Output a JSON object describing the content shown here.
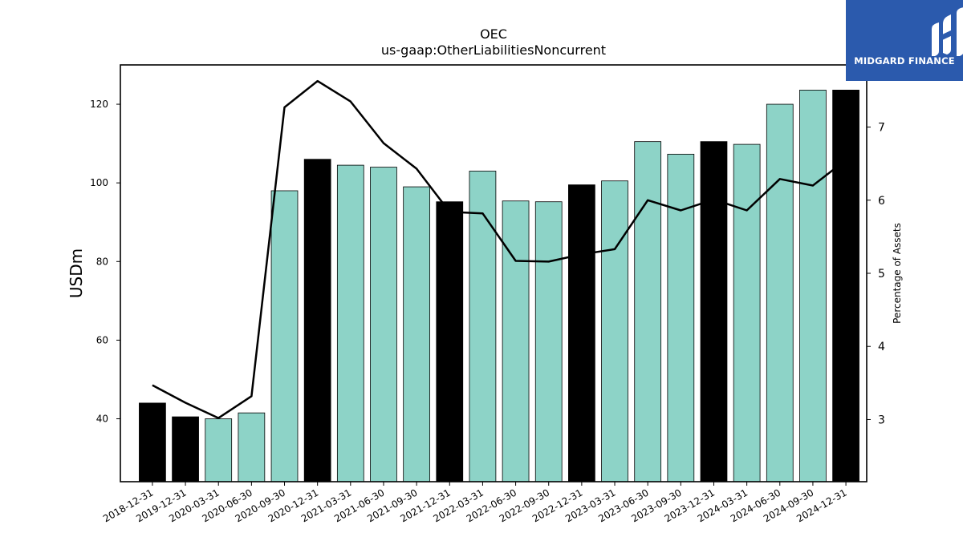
{
  "chart_data": {
    "type": "bar",
    "title": "OEC",
    "subtitle": "us-gaap:OtherLiabilitiesNoncurrent",
    "ylabel": "USDm",
    "y2label": "Percentage of Assets",
    "ylim": [
      24,
      130
    ],
    "y2lim": [
      2.15,
      7.85
    ],
    "yticks": [
      40,
      60,
      80,
      100,
      120
    ],
    "y2ticks": [
      3,
      4,
      5,
      6,
      7
    ],
    "categories": [
      "2018-12-31",
      "2019-12-31",
      "2020-03-31",
      "2020-06-30",
      "2020-09-30",
      "2020-12-31",
      "2021-03-31",
      "2021-06-30",
      "2021-09-30",
      "2021-12-31",
      "2022-03-31",
      "2022-06-30",
      "2022-09-30",
      "2022-12-31",
      "2023-03-31",
      "2023-06-30",
      "2023-09-30",
      "2023-12-31",
      "2024-03-31",
      "2024-06-30",
      "2024-09-30",
      "2024-12-31"
    ],
    "series": [
      {
        "values": [
          44.0,
          40.5,
          40.0,
          41.5,
          98.0,
          106.0,
          104.5,
          104.0,
          99.0,
          95.2,
          103.0,
          95.4,
          95.2,
          99.5,
          100.5,
          110.5,
          107.3,
          110.5,
          109.8,
          120.0,
          123.6,
          123.6
        ],
        "annual": [
          true,
          true,
          false,
          false,
          false,
          true,
          false,
          false,
          false,
          true,
          false,
          false,
          false,
          true,
          false,
          false,
          false,
          true,
          false,
          false,
          false,
          true
        ]
      },
      {
        "type": "line",
        "axis": "right",
        "values": [
          3.47,
          3.23,
          3.02,
          3.32,
          7.27,
          7.63,
          7.35,
          6.78,
          6.43,
          5.84,
          5.82,
          5.17,
          5.16,
          5.26,
          5.33,
          6.0,
          5.86,
          6.01,
          5.86,
          6.29,
          6.2,
          6.55
        ]
      }
    ],
    "colors": {
      "annual_bar": "#000000",
      "quarter_bar": "#8dd3c7",
      "line": "#000000"
    },
    "grid": false,
    "legend": "none"
  },
  "logo": {
    "text": "MIDGARD FINANCE",
    "icon": "midgard-logo-icon",
    "background": "#2b5aad"
  }
}
